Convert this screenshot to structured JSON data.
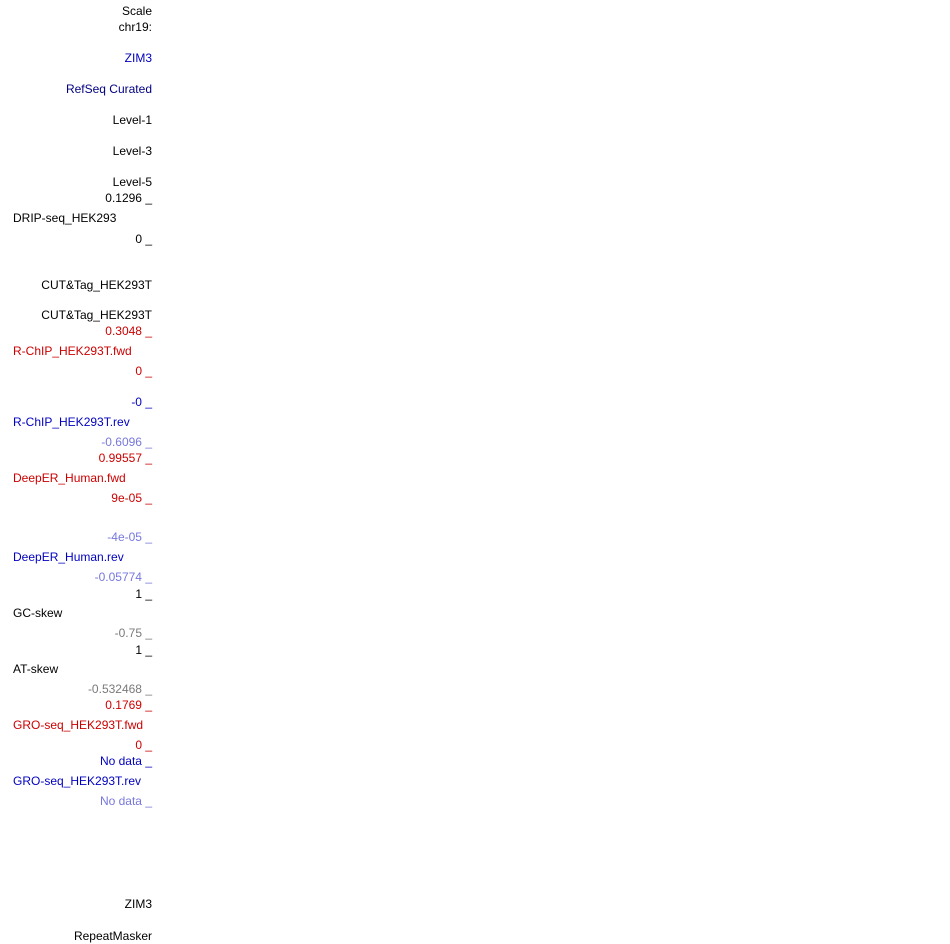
{
  "colors": {
    "black": "#000000",
    "navy": "#000080",
    "blue": "#0000c0",
    "red": "#cc0000",
    "light_blue": "#7777dd",
    "grey": "#7a7a7a"
  },
  "ruler": {
    "scale_label": "Scale",
    "chrom_label": "chr19:"
  },
  "tracks": {
    "zim3_top": "ZIM3",
    "refseq_curated": "RefSeq Curated",
    "level1": "Level-1",
    "level3": "Level-3",
    "level5": "Level-5",
    "drip_max": "0.1296 _",
    "drip_name": "DRIP-seq_HEK293",
    "drip_min": "0 _",
    "cuttag_1": "CUT&Tag_HEK293T",
    "cuttag_2": "CUT&Tag_HEK293T",
    "rchip_fwd_max": "0.3048 _",
    "rchip_fwd_name": "R-ChIP_HEK293T.fwd",
    "rchip_fwd_min": "0 _",
    "rchip_rev_max": "-0 _",
    "rchip_rev_name": "R-ChIP_HEK293T.rev",
    "rchip_rev_min": "-0.6096 _",
    "deeper_fwd_max": "0.99557 _",
    "deeper_fwd_name": "DeepER_Human.fwd",
    "deeper_fwd_min": "9e-05 _",
    "deeper_rev_max": "-4e-05 _",
    "deeper_rev_name": "DeepER_Human.rev",
    "deeper_rev_min": "-0.05774 _",
    "gc_max": "1 _",
    "gc_name": "GC-skew",
    "gc_min": "-0.75 _",
    "at_max": "1 _",
    "at_name": "AT-skew",
    "at_min": "-0.532468 _",
    "gro_fwd_max": "0.1769 _",
    "gro_fwd_name": "GRO-seq_HEK293T.fwd",
    "gro_fwd_min": "0 _",
    "gro_rev_max": "No data _",
    "gro_rev_name": "GRO-seq_HEK293T.rev",
    "gro_rev_min": "No data _",
    "zim3_bottom": "ZIM3",
    "repeatmasker": "RepeatMasker"
  }
}
